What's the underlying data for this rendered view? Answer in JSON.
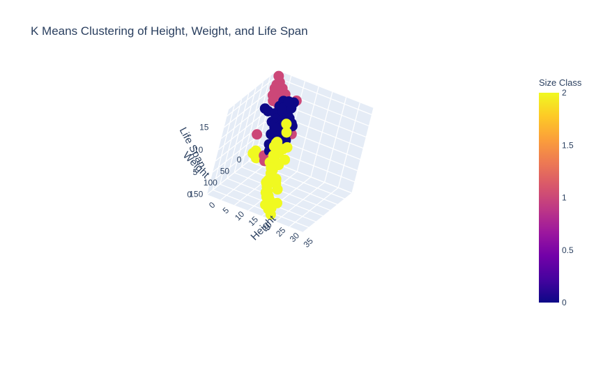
{
  "chart_data": {
    "type": "scatter",
    "subtype": "scatter3d",
    "title": "K Means Clustering of Height, Weight, and Life Span",
    "axes": {
      "x": {
        "label": "Height",
        "range": [
          0,
          35
        ],
        "ticks": [
          "0",
          "5",
          "10",
          "15",
          "20",
          "25",
          "30",
          "35"
        ]
      },
      "y": {
        "label": "Weight",
        "range": [
          0,
          170
        ],
        "ticks": [
          "0",
          "50",
          "100",
          "150"
        ]
      },
      "z": {
        "label": "Life Span",
        "range": [
          0,
          19
        ],
        "ticks": [
          "0",
          "5",
          "10",
          "15"
        ]
      }
    },
    "colorbar": {
      "title": "Size Class",
      "range": [
        0,
        2
      ],
      "ticks": [
        "0",
        "0.5",
        "1",
        "1.5",
        "2"
      ],
      "colorscale": [
        "#0d0887",
        "#46039f",
        "#7201a8",
        "#9c179e",
        "#bd3786",
        "#d8576b",
        "#ed7953",
        "#fb9f3a",
        "#fdca26",
        "#f0f921"
      ]
    },
    "grid": true,
    "series": [
      {
        "class": 1,
        "color": "#cc4778",
        "points": [
          [
            1.5,
            8,
            18.5
          ],
          [
            2.5,
            10,
            17.5
          ],
          [
            3,
            12,
            16.8
          ],
          [
            3.5,
            9,
            16.2
          ],
          [
            2,
            14,
            17
          ],
          [
            4,
            11,
            16.5
          ],
          [
            2.5,
            16,
            15.8
          ],
          [
            3,
            18,
            16
          ],
          [
            4.5,
            14,
            15.5
          ],
          [
            3,
            20,
            15.2
          ],
          [
            5,
            17,
            15
          ],
          [
            3.5,
            22,
            14.5
          ],
          [
            4,
            12,
            15.8
          ],
          [
            2,
            18,
            16.4
          ],
          [
            5.5,
            12,
            15.6
          ],
          [
            3,
            25,
            14.2
          ],
          [
            4,
            20,
            14.8
          ],
          [
            2.5,
            23,
            15.5
          ],
          [
            1,
            6,
            14
          ],
          [
            5,
            24,
            13.8
          ],
          [
            12,
            26,
            9
          ],
          [
            2,
            45,
            7.5
          ],
          [
            9,
            2,
            14.5
          ],
          [
            8,
            70,
            5.5
          ],
          [
            9,
            75,
            4.8
          ],
          [
            10,
            68,
            5
          ]
        ]
      },
      {
        "class": 0,
        "color": "#0d0887",
        "points": [
          [
            7,
            32,
            15.5
          ],
          [
            8,
            34,
            14.5
          ],
          [
            8,
            36,
            13.5
          ],
          [
            9,
            40,
            12.5
          ],
          [
            7,
            38,
            12
          ],
          [
            10,
            35,
            13
          ],
          [
            9,
            45,
            11
          ],
          [
            8,
            48,
            10
          ],
          [
            10,
            50,
            9.5
          ],
          [
            11,
            42,
            11.5
          ],
          [
            7,
            44,
            11
          ],
          [
            10,
            55,
            8.5
          ],
          [
            11,
            58,
            8
          ],
          [
            9,
            52,
            9
          ],
          [
            12,
            48,
            10.5
          ],
          [
            8,
            60,
            7.5
          ],
          [
            10,
            62,
            7
          ],
          [
            12,
            55,
            9
          ],
          [
            9,
            65,
            6.5
          ],
          [
            11,
            40,
            13
          ],
          [
            6,
            30,
            14
          ],
          [
            10,
            30,
            14.5
          ],
          [
            13,
            45,
            12
          ],
          [
            12,
            38,
            12
          ],
          [
            8,
            28,
            13
          ],
          [
            11,
            65,
            7.5
          ],
          [
            13,
            58,
            9.5
          ],
          [
            7,
            50,
            9
          ],
          [
            12,
            62,
            8
          ],
          [
            9,
            35,
            16
          ],
          [
            10,
            25,
            15.5
          ],
          [
            8,
            55,
            11
          ],
          [
            6,
            42,
            13
          ],
          [
            1,
            25,
            12
          ],
          [
            2,
            22,
            11.5
          ],
          [
            4,
            20,
            9.5
          ]
        ]
      },
      {
        "class": 2,
        "color": "#f0f921",
        "points": [
          [
            11,
            70,
            9
          ],
          [
            13,
            80,
            8
          ],
          [
            13,
            85,
            6.5
          ],
          [
            12,
            90,
            6
          ],
          [
            14,
            95,
            5
          ],
          [
            14,
            100,
            4.5
          ],
          [
            16,
            105,
            3.5
          ],
          [
            14,
            110,
            3
          ],
          [
            15,
            115,
            2.5
          ],
          [
            16,
            120,
            2
          ],
          [
            17,
            125,
            1.5
          ],
          [
            18,
            130,
            1.2
          ],
          [
            19,
            140,
            0.8
          ],
          [
            20,
            150,
            0.5
          ],
          [
            22,
            160,
            0.3
          ],
          [
            17,
            110,
            4.5
          ],
          [
            18,
            118,
            4
          ],
          [
            13,
            75,
            7.5
          ],
          [
            15,
            88,
            6
          ],
          [
            12,
            65,
            4
          ],
          [
            16,
            95,
            3
          ],
          [
            12,
            80,
            10
          ],
          [
            16,
            80,
            7
          ],
          [
            13,
            95,
            8
          ],
          [
            15,
            70,
            9
          ],
          [
            14,
            72,
            8.5
          ],
          [
            17,
            140,
            3
          ],
          [
            18,
            145,
            2.5
          ],
          [
            19,
            155,
            1.5
          ],
          [
            20,
            132,
            4
          ],
          [
            13,
            63,
            11.5
          ],
          [
            16,
            130,
            5
          ],
          [
            22,
            165,
            2
          ],
          [
            23,
            158,
            3
          ],
          [
            12,
            60,
            13
          ],
          [
            11,
            75,
            8.5
          ],
          [
            14,
            105,
            6
          ],
          [
            3,
            55,
            4
          ],
          [
            4,
            58,
            5
          ],
          [
            5,
            62,
            3.8
          ]
        ]
      }
    ]
  }
}
